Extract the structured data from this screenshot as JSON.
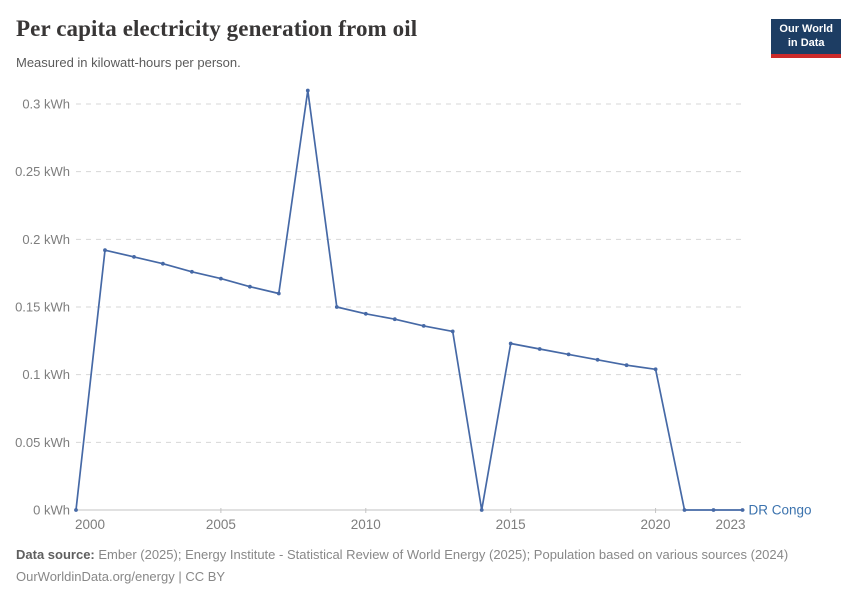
{
  "header": {
    "logo": {
      "line1": "Our World",
      "line2": "in Data",
      "bg_color": "#1d3d63",
      "bar_color": "#cc2a29"
    }
  },
  "chart_data": {
    "type": "line",
    "title": "Per capita electricity generation from oil",
    "subtitle": "Measured in kilowatt-hours per person.",
    "xlabel": "",
    "ylabel": "",
    "unit": "kWh",
    "xlim": [
      2000,
      2023
    ],
    "ylim": [
      0,
      0.31
    ],
    "grid": "horizontal dashed gridlines, zero axis solid",
    "legend_position": "end-of-line entity label",
    "x_ticks": [
      2000,
      2005,
      2010,
      2015,
      2020,
      2023
    ],
    "y_ticks": [
      {
        "value": 0,
        "label": "0 kWh"
      },
      {
        "value": 0.05,
        "label": "0.05 kWh"
      },
      {
        "value": 0.1,
        "label": "0.1 kWh"
      },
      {
        "value": 0.15,
        "label": "0.15 kWh"
      },
      {
        "value": 0.2,
        "label": "0.2 kWh"
      },
      {
        "value": 0.25,
        "label": "0.25 kWh"
      },
      {
        "value": 0.3,
        "label": "0.3 kWh"
      }
    ],
    "series": [
      {
        "name": "DR Congo",
        "color": "#4669a6",
        "label_color": "#3c73ae",
        "x": [
          2000,
          2001,
          2002,
          2003,
          2004,
          2005,
          2006,
          2007,
          2008,
          2009,
          2010,
          2011,
          2012,
          2013,
          2014,
          2015,
          2016,
          2017,
          2018,
          2019,
          2020,
          2021,
          2022,
          2023
        ],
        "values": [
          0,
          0.192,
          0.187,
          0.182,
          0.176,
          0.171,
          0.165,
          0.16,
          0.31,
          0.15,
          0.145,
          0.141,
          0.136,
          0.132,
          0,
          0.123,
          0.119,
          0.115,
          0.111,
          0.107,
          0.104,
          0,
          0,
          0
        ]
      }
    ]
  },
  "footer": {
    "source_label": "Data source:",
    "source_text": " Ember (2025); Energy Institute - Statistical Review of World Energy (2025); Population based on various sources (2024)",
    "license_line": "OurWorldinData.org/energy | CC BY"
  }
}
